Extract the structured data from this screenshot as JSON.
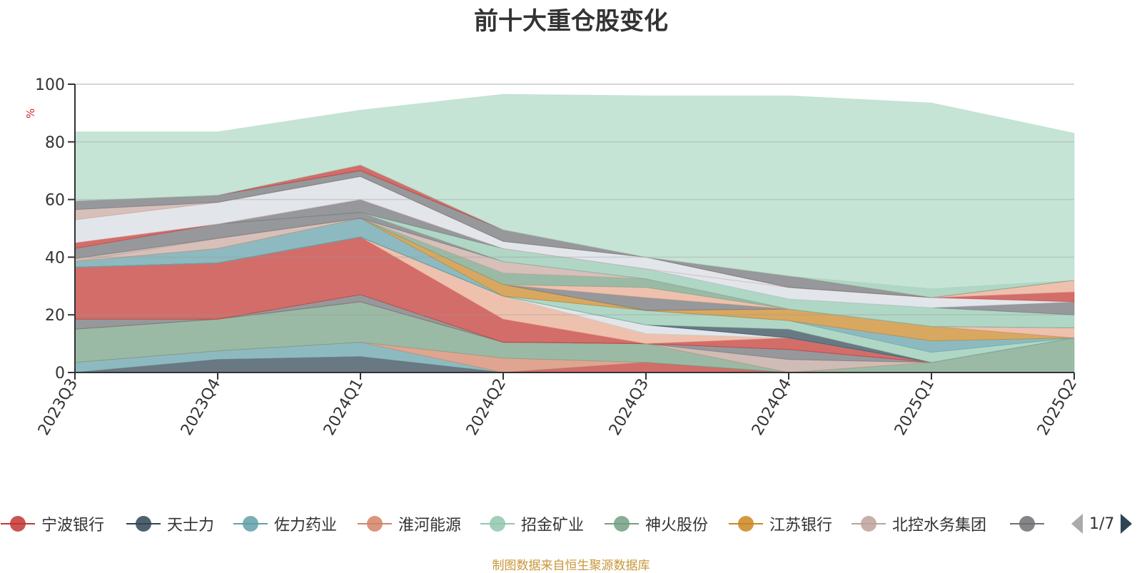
{
  "title": "前十大重仓股变化",
  "source": "制图数据来自恒生聚源数据库",
  "pager": {
    "text": "1/7",
    "prev": "triangle-left-icon",
    "next": "triangle-right-icon"
  },
  "chart_data": {
    "type": "area",
    "stacked": true,
    "title": "前十大重仓股变化",
    "ylabel": "%",
    "ylim": [
      0,
      100
    ],
    "yticks": [
      0,
      20,
      40,
      60,
      80,
      100
    ],
    "grid": true,
    "legend_position": "bottom",
    "categories": [
      "2023Q3",
      "2023Q4",
      "2024Q1",
      "2024Q2",
      "2024Q3",
      "2024Q4",
      "2025Q1",
      "2025Q2"
    ],
    "layers": [
      {
        "color": "#2f4554",
        "values": [
          0,
          4.5,
          5.5,
          0,
          0,
          0,
          0,
          0
        ]
      },
      {
        "color": "#c23531",
        "values": [
          0,
          0,
          0,
          0,
          3.5,
          0,
          0,
          0
        ]
      },
      {
        "color": "#61a0a8",
        "values": [
          3.5,
          3.0,
          5.0,
          0,
          0,
          0,
          0,
          0
        ]
      },
      {
        "color": "#d48265",
        "values": [
          0,
          0,
          0,
          5.0,
          0,
          0,
          0,
          0
        ]
      },
      {
        "color": "#749f83",
        "values": [
          11.5,
          11.0,
          14.0,
          5.5,
          6.5,
          0,
          3.5,
          12.0
        ]
      },
      {
        "color": "#ca8622",
        "values": [
          0,
          0,
          0,
          0,
          0,
          0,
          0,
          0
        ]
      },
      {
        "color": "#bda29a",
        "values": [
          0,
          0,
          0,
          0,
          0,
          4.5,
          0,
          0
        ]
      },
      {
        "color": "#6e7074",
        "values": [
          3.5,
          0,
          2.5,
          0,
          0,
          3.5,
          0,
          0
        ]
      },
      {
        "color": "#c23531",
        "values": [
          18.0,
          19.5,
          20.0,
          8.0,
          0,
          4.0,
          0,
          0
        ]
      },
      {
        "color": "#e7a98f",
        "values": [
          0,
          0,
          0,
          8.0,
          3.5,
          0,
          0,
          0
        ]
      },
      {
        "color": "#91c7ae",
        "values": [
          0,
          0,
          0,
          0,
          0,
          0,
          0,
          0
        ]
      },
      {
        "color": "#d7dde3",
        "values": [
          0,
          0,
          0,
          0,
          3.0,
          0,
          0,
          0
        ]
      },
      {
        "color": "#61a0a8",
        "values": [
          0,
          0,
          0,
          0,
          0,
          0,
          0,
          0
        ]
      },
      {
        "color": "#2f4554",
        "values": [
          0,
          0,
          0,
          0,
          0,
          3.0,
          0,
          0
        ]
      },
      {
        "color": "#91c7ae",
        "values": [
          0,
          0,
          0,
          0,
          5.0,
          3.0,
          3.5,
          0
        ]
      },
      {
        "color": "#61a0a8",
        "values": [
          2.0,
          5.0,
          6.5,
          0,
          0,
          0,
          4.0,
          0
        ]
      },
      {
        "color": "#ca8622",
        "values": [
          0,
          0,
          0,
          4.0,
          0,
          4.0,
          5.0,
          0
        ]
      },
      {
        "color": "#6e7074",
        "values": [
          0,
          0,
          0,
          0,
          4.5,
          0,
          0,
          0
        ]
      },
      {
        "color": "#e7a98f",
        "values": [
          0,
          0,
          0,
          0,
          3.5,
          0,
          0,
          3.5
        ]
      },
      {
        "color": "#749f83",
        "values": [
          0,
          0,
          0,
          4.0,
          3.0,
          0,
          0,
          0
        ]
      },
      {
        "color": "#c8a8a0",
        "values": [
          0,
          3.5,
          0,
          4.0,
          0,
          0,
          0,
          0
        ]
      },
      {
        "color": "#bda29a",
        "values": [
          1.0,
          0,
          0,
          0,
          0,
          0,
          0,
          0
        ]
      },
      {
        "color": "#6e7074",
        "values": [
          3.5,
          5.0,
          2.0,
          0,
          0,
          0,
          0,
          0
        ]
      },
      {
        "color": "#91c7ae",
        "values": [
          0,
          0,
          0,
          4.5,
          3.5,
          3.5,
          6.5,
          4.5
        ]
      },
      {
        "color": "#6e7074",
        "values": [
          0,
          0,
          4.5,
          0,
          0,
          0,
          0,
          4.5
        ]
      },
      {
        "color": "#d7dde3",
        "values": [
          0,
          0,
          0,
          0,
          0,
          4.0,
          3.5,
          0
        ]
      },
      {
        "color": "#c23531",
        "values": [
          2.0,
          0,
          0,
          0,
          0,
          0,
          0,
          3.5
        ]
      },
      {
        "color": "#d7dde3",
        "values": [
          8.0,
          7.5,
          8.0,
          2.5,
          4.0,
          0,
          0,
          0
        ]
      },
      {
        "color": "#e7a98f",
        "values": [
          0,
          0,
          0,
          0,
          0,
          0,
          0,
          4.0
        ]
      },
      {
        "color": "#c8a8a0",
        "values": [
          3.5,
          0,
          0,
          0,
          0,
          0,
          0,
          0
        ]
      },
      {
        "color": "#6e7074",
        "values": [
          3.0,
          2.5,
          2.0,
          4.0,
          0,
          4.0,
          0,
          0
        ]
      },
      {
        "color": "#c23531",
        "values": [
          0,
          0,
          2.0,
          0,
          0,
          0,
          0,
          0
        ]
      },
      {
        "color": "#91c7ae",
        "values": [
          0,
          0,
          0,
          0,
          0,
          0,
          3.0,
          0
        ]
      },
      {
        "color": "#b0d9c6",
        "values": [
          24.0,
          22.0,
          19.0,
          47.0,
          56.0,
          62.5,
          64.5,
          51.0
        ]
      }
    ],
    "legend": [
      {
        "name": "宁波银行",
        "color": "#c23531"
      },
      {
        "name": "天士力",
        "color": "#2f4554"
      },
      {
        "name": "佐力药业",
        "color": "#61a0a8"
      },
      {
        "name": "淮河能源",
        "color": "#d48265"
      },
      {
        "name": "招金矿业",
        "color": "#91c7ae"
      },
      {
        "name": "神火股份",
        "color": "#749f83"
      },
      {
        "name": "江苏银行",
        "color": "#ca8622"
      },
      {
        "name": "北控水务集团",
        "color": "#bda29a"
      },
      {
        "name": "",
        "color": "#6e7074"
      }
    ]
  }
}
